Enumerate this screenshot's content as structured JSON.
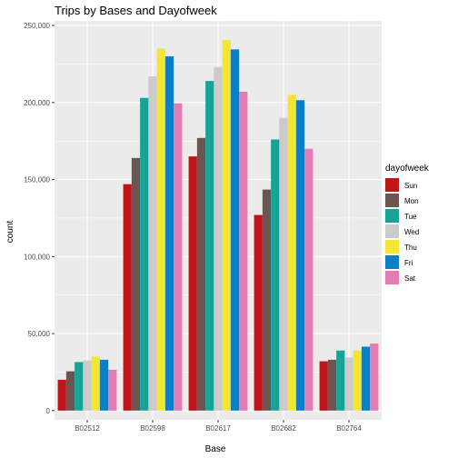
{
  "chart_data": {
    "type": "bar",
    "title": "Trips by Bases and Dayofweek",
    "xlabel": "Base",
    "ylabel": "count",
    "categories": [
      "B02512",
      "B02598",
      "B02617",
      "B02682",
      "B02764"
    ],
    "ylim": [
      -6000,
      253000
    ],
    "yticks": [
      0,
      50000,
      100000,
      150000,
      200000,
      250000
    ],
    "ytick_labels": [
      "0",
      "50,000",
      "100,000",
      "150,000",
      "200,000",
      "250,000"
    ],
    "grid": true,
    "legend_title": "dayofweek",
    "legend_position": "right",
    "series": [
      {
        "name": "Sun",
        "color": "#c0161b",
        "values": [
          20000,
          147000,
          165000,
          127000,
          32000
        ]
      },
      {
        "name": "Mon",
        "color": "#6b5550",
        "values": [
          25500,
          164000,
          177000,
          143500,
          33000
        ]
      },
      {
        "name": "Tue",
        "color": "#17a398",
        "values": [
          31500,
          203000,
          214000,
          176000,
          39000
        ]
      },
      {
        "name": "Wed",
        "color": "#cbcbcb",
        "values": [
          32500,
          217000,
          223000,
          190000,
          34500
        ]
      },
      {
        "name": "Thu",
        "color": "#f4e534",
        "values": [
          35000,
          235000,
          240500,
          205000,
          39000
        ]
      },
      {
        "name": "Fri",
        "color": "#0a7fc6",
        "values": [
          33000,
          230000,
          234500,
          201500,
          41500
        ]
      },
      {
        "name": "Sat",
        "color": "#e37bb4",
        "values": [
          26500,
          199500,
          207000,
          170000,
          43500
        ]
      }
    ]
  }
}
